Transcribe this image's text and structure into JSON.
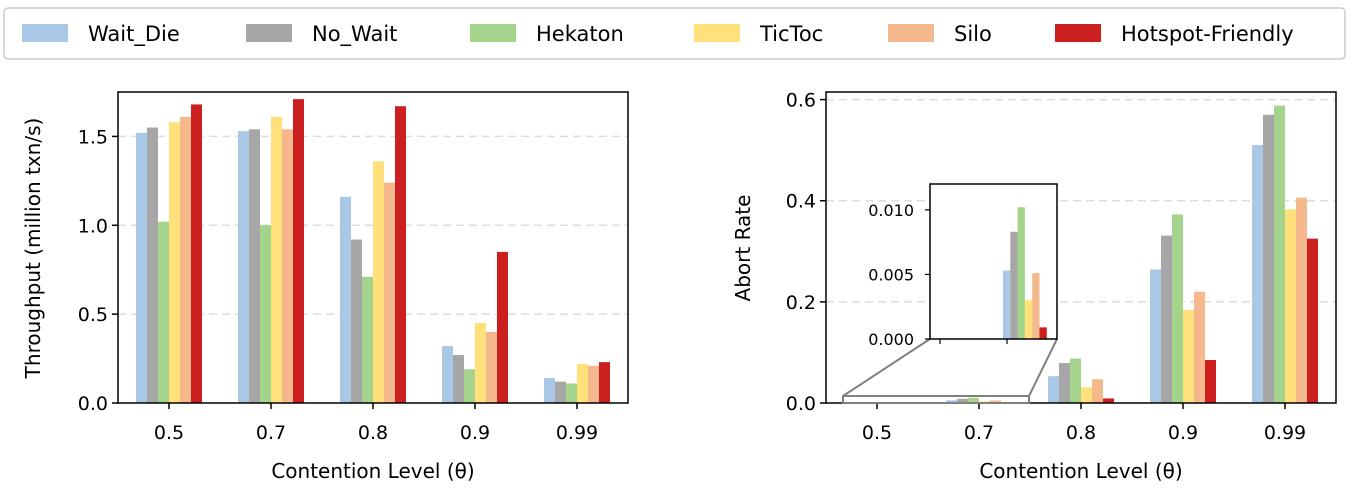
{
  "legend": {
    "entries": [
      {
        "name": "Wait_Die",
        "color": "#a8c8e6"
      },
      {
        "name": "No_Wait",
        "color": "#a6a6a6"
      },
      {
        "name": "Hekaton",
        "color": "#a4d48c"
      },
      {
        "name": "TicToc",
        "color": "#ffe07a"
      },
      {
        "name": "Silo",
        "color": "#f5b88c"
      },
      {
        "name": "Hotspot-Friendly",
        "color": "#cc1f1f"
      }
    ],
    "placement": "top-center"
  },
  "chart_data": [
    {
      "type": "bar",
      "xlabel": "Contention Level (θ)",
      "ylabel": "Throughput (million txn/s)",
      "categories": [
        "0.5",
        "0.7",
        "0.8",
        "0.9",
        "0.99"
      ],
      "ylim": [
        0,
        1.75
      ],
      "yticks": [
        "0.0",
        "0.5",
        "1.0",
        "1.5"
      ],
      "grid": "horizontal dashed",
      "series": [
        {
          "name": "Wait_Die",
          "values": [
            1.52,
            1.53,
            1.16,
            0.32,
            0.14
          ]
        },
        {
          "name": "No_Wait",
          "values": [
            1.55,
            1.54,
            0.92,
            0.27,
            0.12
          ]
        },
        {
          "name": "Hekaton",
          "values": [
            1.02,
            1.0,
            0.71,
            0.19,
            0.11
          ]
        },
        {
          "name": "TicToc",
          "values": [
            1.58,
            1.61,
            1.36,
            0.45,
            0.22
          ]
        },
        {
          "name": "Silo",
          "values": [
            1.61,
            1.54,
            1.24,
            0.4,
            0.21
          ]
        },
        {
          "name": "Hotspot-Friendly",
          "values": [
            1.68,
            1.71,
            1.67,
            0.85,
            0.23
          ]
        }
      ]
    },
    {
      "type": "bar",
      "xlabel": "Contention Level (θ)",
      "ylabel": "Abort Rate",
      "categories": [
        "0.5",
        "0.7",
        "0.8",
        "0.9",
        "0.99"
      ],
      "ylim": [
        0,
        0.615
      ],
      "yticks": [
        "0.0",
        "0.2",
        "0.4",
        "0.6"
      ],
      "grid": "horizontal dashed",
      "series": [
        {
          "name": "Wait_Die",
          "values": [
            0.0,
            0.0053,
            0.053,
            0.264,
            0.51
          ]
        },
        {
          "name": "No_Wait",
          "values": [
            0.0,
            0.0083,
            0.079,
            0.331,
            0.57
          ]
        },
        {
          "name": "Hekaton",
          "values": [
            0.0,
            0.0102,
            0.088,
            0.373,
            0.588
          ]
        },
        {
          "name": "TicToc",
          "values": [
            0.0,
            0.003,
            0.031,
            0.184,
            0.383
          ]
        },
        {
          "name": "Silo",
          "values": [
            0.0,
            0.0051,
            0.047,
            0.22,
            0.406
          ]
        },
        {
          "name": "Hotspot-Friendly",
          "values": [
            0.0,
            0.0009,
            0.009,
            0.085,
            0.325
          ]
        }
      ],
      "inset": {
        "zoom_region_x": [
          "0.5",
          "0.7"
        ],
        "ylim": [
          0,
          0.012
        ],
        "yticks": [
          "0.000",
          "0.005",
          "0.010"
        ],
        "category_shown": "0.7"
      }
    }
  ]
}
